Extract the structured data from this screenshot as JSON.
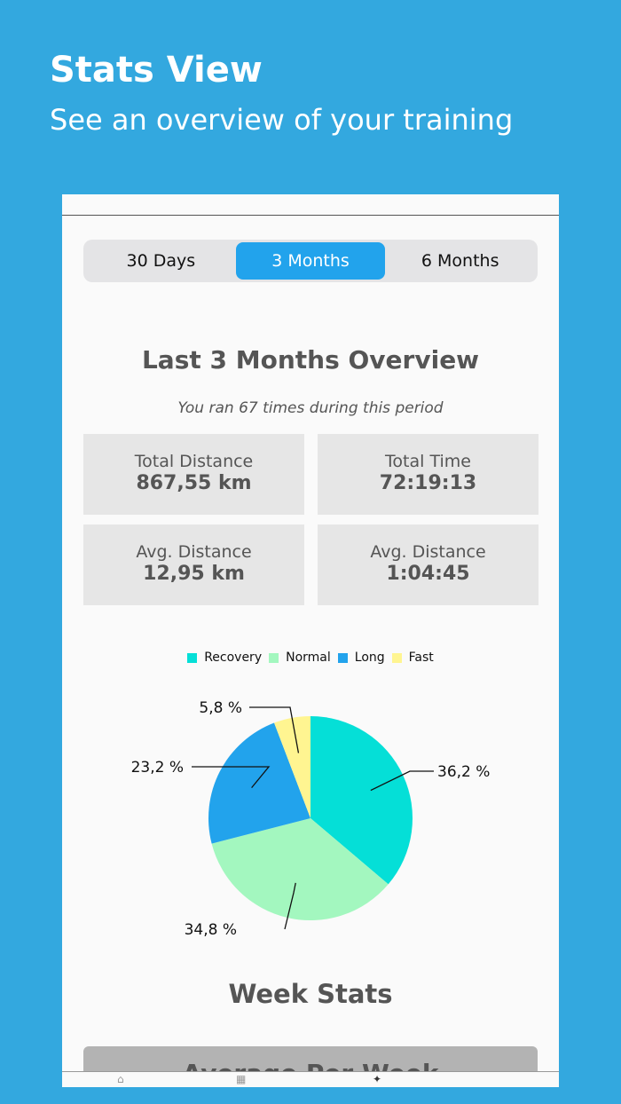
{
  "hero": {
    "title": "Stats View",
    "subtitle": "See an overview of your training"
  },
  "segments": [
    {
      "label": "30 Days",
      "selected": false
    },
    {
      "label": "3 Months",
      "selected": true
    },
    {
      "label": "6 Months",
      "selected": false
    }
  ],
  "overview": {
    "title": "Last 3 Months Overview",
    "subtitle": "You ran 67 times during this period"
  },
  "stats": [
    {
      "label": "Total Distance",
      "value": "867,55 km"
    },
    {
      "label": "Total Time",
      "value": "72:19:13"
    },
    {
      "label": "Avg. Distance",
      "value": "12,95 km"
    },
    {
      "label": "Avg. Distance",
      "value": "1:04:45"
    }
  ],
  "chart_data": {
    "type": "pie",
    "title": "",
    "series": [
      {
        "name": "Recovery",
        "value": 36.2,
        "label": "36,2  %",
        "color": "#05dfd7"
      },
      {
        "name": "Normal",
        "value": 34.8,
        "label": "34,8  %",
        "color": "#a3f7bf"
      },
      {
        "name": "Long",
        "value": 23.2,
        "label": "23,2  %",
        "color": "#22a3ec"
      },
      {
        "name": "Fast",
        "value": 5.8,
        "label": "5,8  %",
        "color": "#fff591"
      }
    ],
    "legend_position": "top"
  },
  "week": {
    "title": "Week Stats",
    "card_label": "Average Per Week"
  },
  "tabbar": {
    "icons": [
      "home-icon",
      "calendar-icon",
      "runner-icon"
    ]
  },
  "colors": {
    "background": "#33a8df",
    "accent": "#22a3ec"
  }
}
